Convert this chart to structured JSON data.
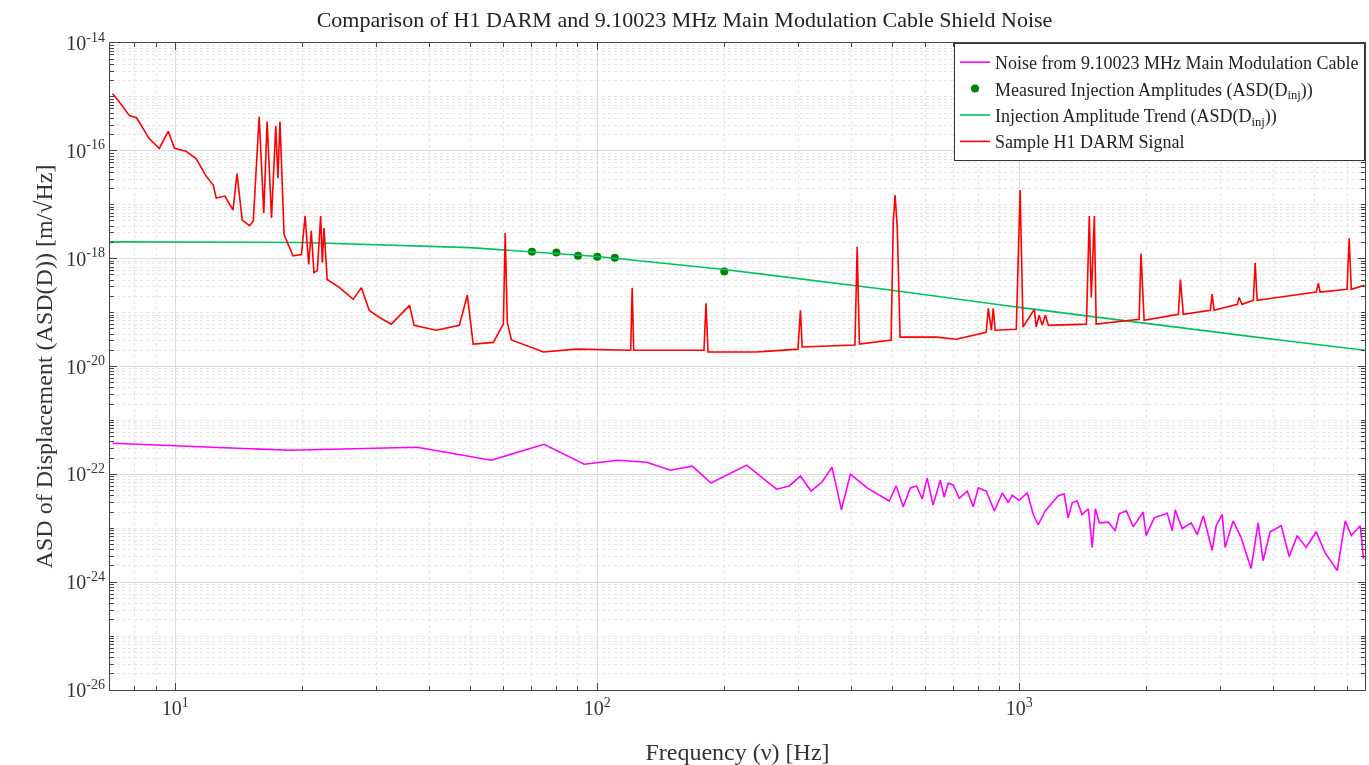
{
  "chart_data": {
    "type": "line",
    "title": "Comparison of H1 DARM and 9.10023 MHz Main Modulation Cable Shield Noise",
    "xlabel": "Frequency (ν) [Hz]",
    "ylabel": "ASD of Displacement (ASD(D)) [m/√Hz]",
    "log": "xy",
    "grid": true,
    "legend": "top right",
    "xlim": [
      7,
      6600
    ],
    "xticks": [
      {
        "value": 10,
        "label": "10$^{1}$"
      },
      {
        "value": 100,
        "label": "10$^{2}$"
      },
      {
        "value": 1000,
        "label": "10$^{3}$"
      }
    ],
    "ylim": [
      1e-26,
      1e-14
    ],
    "yticks": [
      {
        "value": 1e-26,
        "label": "10$^{-26}$"
      },
      {
        "value": 1e-24,
        "label": "10$^{-24}$"
      },
      {
        "value": 1e-22,
        "label": "10$^{-22}$"
      },
      {
        "value": 1e-20,
        "label": "10$^{-20}$"
      },
      {
        "value": 1e-18,
        "label": "10$^{-18}$"
      },
      {
        "value": 1e-16,
        "label": "10$^{-16}$"
      },
      {
        "value": 1e-14,
        "label": "10$^{-14}$"
      }
    ],
    "series": [
      {
        "name": "Noise from 9.10023 MHz Main Modulation Cable",
        "color": "#ff00ff",
        "x": [
          7.1,
          18.7,
          37.4,
          56.1,
          74.8,
          93.1,
          112,
          131,
          149,
          168,
          186,
          226,
          266,
          285,
          303,
          321,
          341,
          360,
          379,
          398,
          436,
          492,
          511,
          531,
          552,
          571,
          589,
          605,
          625,
          650,
          664,
          679,
          698,
          721,
          753,
          778,
          800,
          835,
          873,
          912,
          942,
          962,
          1000,
          1045,
          1080,
          1109,
          1153,
          1237,
          1278,
          1306,
          1336,
          1372,
          1409,
          1458,
          1490,
          1515,
          1549,
          1626,
          1688,
          1726,
          1794,
          1864,
          1967,
          1999,
          2089,
          2243,
          2305,
          2343,
          2433,
          2556,
          2642,
          2731,
          2866,
          2929,
          3027,
          3077,
          3214,
          3357,
          3545,
          3683,
          3784,
          3934,
          4178,
          4364,
          4559,
          4786,
          5057,
          5308,
          5672,
          5926,
          6124,
          6431,
          6550
        ],
        "values": [
          3.76e-22,
          2.79e-22,
          3.17e-22,
          1.83e-22,
          3.6e-22,
          1.54e-22,
          1.83e-22,
          1.68e-22,
          1.19e-22,
          1.42e-22,
          6.9e-23,
          1.48e-22,
          5.3e-23,
          6.1e-23,
          9.3e-23,
          4.9e-23,
          7.2e-23,
          1.36e-22,
          2.2e-23,
          1.01e-22,
          5.6e-23,
          3.2e-23,
          6.1e-23,
          2.5e-23,
          5.6e-23,
          6.1e-23,
          3.5e-23,
          8.5e-23,
          2.7e-23,
          7.8e-23,
          3.8e-23,
          6.9e-23,
          6.3e-23,
          3.6e-23,
          4.9e-23,
          2.5e-23,
          5.6e-23,
          4.9e-23,
          2.1e-23,
          4.5e-23,
          3e-23,
          4.1e-23,
          3.3e-23,
          4.5e-23,
          1.8e-23,
          1.16e-23,
          2.1e-23,
          4e-23,
          4.3e-23,
          1.56e-23,
          3e-23,
          3.2e-23,
          1.8e-23,
          2.3e-23,
          4.4e-24,
          2.3e-23,
          1.26e-23,
          1.3e-23,
          9e-24,
          1.85e-23,
          2.1e-23,
          1.07e-23,
          2e-23,
          7.3e-24,
          1.56e-23,
          1.9e-23,
          9e-24,
          2.2e-23,
          9.8e-24,
          1.26e-23,
          7.6e-24,
          1.7e-23,
          3.9e-24,
          1.11e-23,
          1.8e-23,
          4.4e-24,
          1.37e-23,
          6.7e-24,
          1.8e-24,
          1.26e-23,
          2.5e-24,
          8.6e-24,
          1.11e-23,
          3e-24,
          7.3e-24,
          4.4e-24,
          8.6e-24,
          3.5e-24,
          1.65e-24,
          1.37e-23,
          7.3e-24,
          1.11e-23,
          2.7e-24
        ]
      },
      {
        "name": "Measured Injection Amplitudes (ASD(D$_{inj}$))",
        "type": "scatter",
        "marker": "circle",
        "color": "#008000",
        "x": [
          70,
          80,
          90,
          100,
          110,
          200
        ],
        "values": [
          1.35e-18,
          1.3e-18,
          1.13e-18,
          1.09e-18,
          1.04e-18,
          5.8e-19
        ]
      },
      {
        "name": "Injection Amplitude Trend (ASD(D$_{inj}$))",
        "color": "#00c060",
        "x": [
          7,
          20,
          50,
          100,
          200,
          500,
          1000,
          2000,
          4000,
          6600
        ],
        "values": [
          2.05e-18,
          2e-18,
          1.6e-18,
          1.1e-18,
          6.3e-19,
          2.6e-19,
          1.25e-19,
          6.3e-20,
          3.2e-20,
          2e-20
        ]
      },
      {
        "name": "Sample H1 DARM Signal",
        "color": "#ff0000",
        "x": [
          7.1,
          7.36,
          7.78,
          8.09,
          8.67,
          9.16,
          9.62,
          9.95,
          10.6,
          11.2,
          11.8,
          12.3,
          12.5,
          13.1,
          13.7,
          14.0,
          14.4,
          15.0,
          15.3,
          15.8,
          16.2,
          16.5,
          16.9,
          17.3,
          17.5,
          17.7,
          18.1,
          19.0,
          19.9,
          20.3,
          20.7,
          21.0,
          21.3,
          21.7,
          22.1,
          22.3,
          22.5,
          22.9,
          24.5,
          26.4,
          27.6,
          28.8,
          30.4,
          32.5,
          35.9,
          36.8,
          41.5,
          47.1,
          49.2,
          50.8,
          56.7,
          59.9,
          60.5,
          61.2,
          62.6,
          74.5,
          89.1,
          120,
          121,
          122,
          179,
          181,
          183,
          238,
          299,
          303,
          306,
          408,
          413,
          418,
          497,
          503,
          508,
          514,
          522,
          636,
          709,
          835,
          845,
          859,
          868,
          877,
          984,
          1005,
          1021,
          1086,
          1097,
          1115,
          1134,
          1153,
          1173,
          1443,
          1466,
          1482,
          1507,
          1522,
          1924,
          1944,
          1977,
          2383,
          2410,
          2449,
          2838,
          2866,
          2896,
          3289,
          3321,
          3373,
          3589,
          3624,
          3664,
          5058,
          5117,
          5165,
          5984,
          6053,
          6124,
          6580
        ],
        "values": [
          1.14e-15,
          8.1e-16,
          4.5e-16,
          4.1e-16,
          1.69e-16,
          1.11e-16,
          2.3e-16,
          1.11e-16,
          9.8e-17,
          7.2e-17,
          3.5e-17,
          2.3e-17,
          1.33e-17,
          1.45e-17,
          8e-18,
          3.8e-17,
          5.2e-18,
          4.1e-18,
          5e-18,
          4.3e-16,
          7e-18,
          3.5e-16,
          5.7e-18,
          2.9e-16,
          3.1e-17,
          3.5e-16,
          2.8e-18,
          1.13e-18,
          1.19e-18,
          6.2e-18,
          7.8e-19,
          3.3e-18,
          5.5e-19,
          6e-19,
          6.2e-18,
          8.4e-19,
          3.7e-18,
          4.1e-19,
          2.9e-19,
          1.76e-19,
          2.9e-19,
          1.1e-19,
          8.2e-20,
          6.1e-20,
          1.36e-19,
          5.8e-20,
          4.7e-20,
          5.8e-20,
          2.1e-19,
          2.6e-20,
          2.8e-20,
          6.1e-20,
          3e-18,
          6.6e-20,
          3.1e-20,
          1.86e-20,
          2.1e-20,
          2e-20,
          2.9e-19,
          2e-20,
          2e-20,
          1.48e-19,
          1.86e-20,
          1.86e-20,
          2.1e-20,
          1.1e-19,
          2.3e-20,
          2.5e-20,
          1.66e-18,
          2.6e-20,
          3.1e-20,
          5e-18,
          1.51e-17,
          3.7e-18,
          3.5e-20,
          3.5e-20,
          3.2e-20,
          4.3e-20,
          1.2e-19,
          4.7e-20,
          1.2e-19,
          4.7e-20,
          4.9e-20,
          1.87e-17,
          5.4e-20,
          1.15e-19,
          5.4e-20,
          8.9e-20,
          5.8e-20,
          8.9e-20,
          5.8e-20,
          6.1e-20,
          6.2e-18,
          1.91e-19,
          6.2e-18,
          6.1e-20,
          7.5e-20,
          1.24e-18,
          7.2e-20,
          9.3e-20,
          4.1e-19,
          9.3e-20,
          1.1e-19,
          2.2e-19,
          1.1e-19,
          1.42e-19,
          1.91e-19,
          1.42e-19,
          1.69e-19,
          8.4e-19,
          1.69e-19,
          2.4e-19,
          3.5e-19,
          2.4e-19,
          2.7e-19,
          2.4e-18,
          2.7e-19,
          3.2e-19
        ]
      }
    ]
  }
}
